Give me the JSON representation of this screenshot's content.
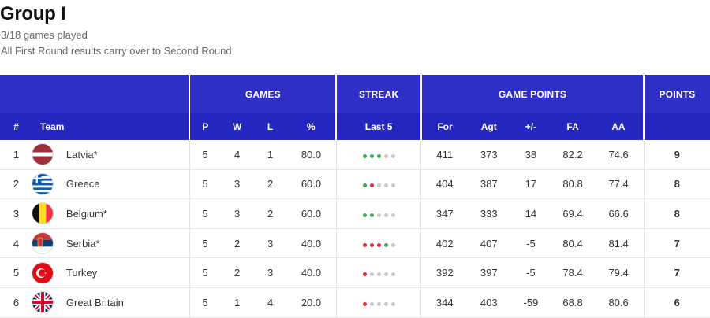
{
  "header": {
    "title": "Group I",
    "games_played": "3/18 games played",
    "note": "All First Round results carry over to Second Round"
  },
  "groups": {
    "games": "GAMES",
    "streak": "STREAK",
    "game_points": "GAME POINTS",
    "points": "POINTS"
  },
  "columns": {
    "rank": "#",
    "team": "Team",
    "p": "P",
    "w": "W",
    "l": "L",
    "pct": "%",
    "last5": "Last 5",
    "for": "For",
    "agt": "Agt",
    "diff": "+/-",
    "fa": "FA",
    "aa": "AA"
  },
  "colors": {
    "win": "#3dab5b",
    "loss": "#d93040",
    "none": "#c9c9c9",
    "header_bg": "#2f2fc8"
  },
  "rows": [
    {
      "rank": "1",
      "team": "Latvia*",
      "p": "5",
      "w": "4",
      "l": "1",
      "pct": "80.0",
      "streak": [
        "W",
        "W",
        "W",
        "-",
        "-"
      ],
      "for": "411",
      "agt": "373",
      "diff": "38",
      "fa": "82.2",
      "aa": "74.6",
      "points": "9",
      "flag": "latvia-flag-icon"
    },
    {
      "rank": "2",
      "team": "Greece",
      "p": "5",
      "w": "3",
      "l": "2",
      "pct": "60.0",
      "streak": [
        "W",
        "L",
        "-",
        "-",
        "-"
      ],
      "for": "404",
      "agt": "387",
      "diff": "17",
      "fa": "80.8",
      "aa": "77.4",
      "points": "8",
      "flag": "greece-flag-icon"
    },
    {
      "rank": "3",
      "team": "Belgium*",
      "p": "5",
      "w": "3",
      "l": "2",
      "pct": "60.0",
      "streak": [
        "W",
        "W",
        "-",
        "-",
        "-"
      ],
      "for": "347",
      "agt": "333",
      "diff": "14",
      "fa": "69.4",
      "aa": "66.6",
      "points": "8",
      "flag": "belgium-flag-icon"
    },
    {
      "rank": "4",
      "team": "Serbia*",
      "p": "5",
      "w": "2",
      "l": "3",
      "pct": "40.0",
      "streak": [
        "L",
        "L",
        "L",
        "W",
        "-"
      ],
      "for": "402",
      "agt": "407",
      "diff": "-5",
      "fa": "80.4",
      "aa": "81.4",
      "points": "7",
      "flag": "serbia-flag-icon"
    },
    {
      "rank": "5",
      "team": "Turkey",
      "p": "5",
      "w": "2",
      "l": "3",
      "pct": "40.0",
      "streak": [
        "L",
        "-",
        "-",
        "-",
        "-"
      ],
      "for": "392",
      "agt": "397",
      "diff": "-5",
      "fa": "78.4",
      "aa": "79.4",
      "points": "7",
      "flag": "turkey-flag-icon"
    },
    {
      "rank": "6",
      "team": "Great Britain",
      "p": "5",
      "w": "1",
      "l": "4",
      "pct": "20.0",
      "streak": [
        "L",
        "-",
        "-",
        "-",
        "-"
      ],
      "for": "344",
      "agt": "403",
      "diff": "-59",
      "fa": "68.8",
      "aa": "80.6",
      "points": "6",
      "flag": "great-britain-flag-icon"
    }
  ]
}
